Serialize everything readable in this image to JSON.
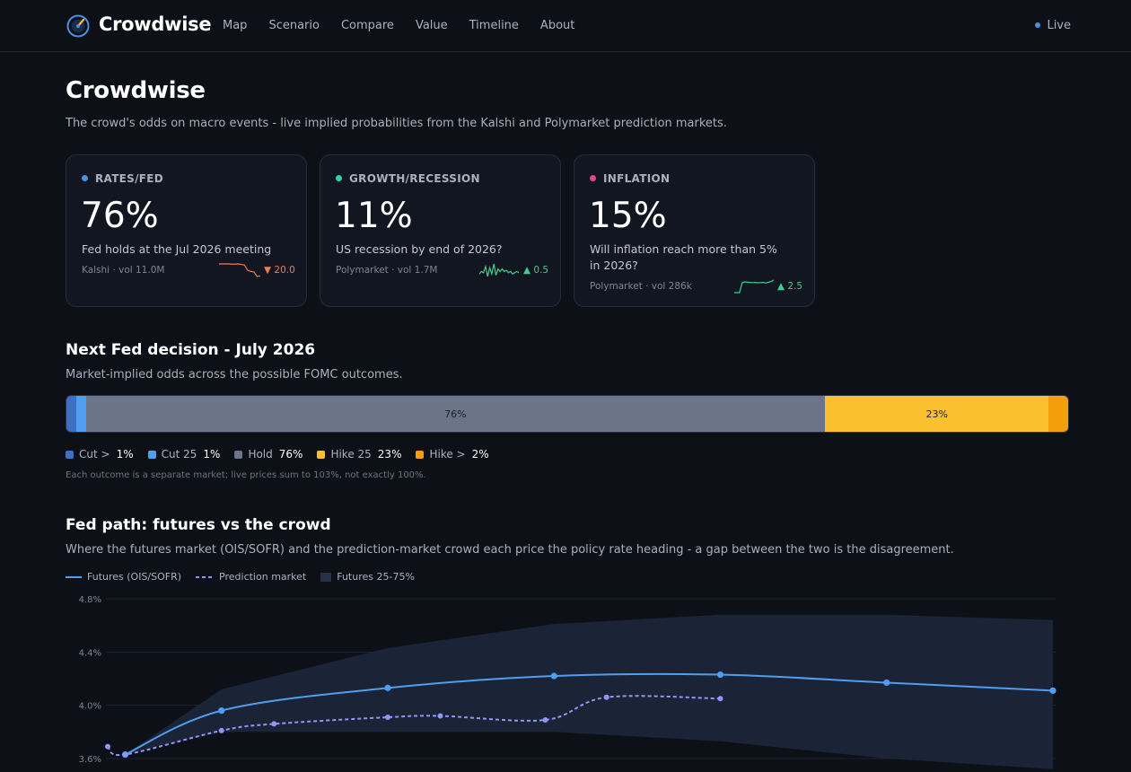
{
  "nav": {
    "brand": "Crowdwise",
    "links": [
      "Map",
      "Scenario",
      "Compare",
      "Value",
      "Timeline",
      "About"
    ],
    "status": "Live"
  },
  "header": {
    "title": "Crowdwise",
    "subtitle": "The crowd's odds on macro events - live implied probabilities from the Kalshi and Polymarket prediction markets."
  },
  "cards": [
    {
      "category": "RATES/FED",
      "dot_color": "#4a90e2",
      "value": "76%",
      "question": "Fed holds at the Jul 2026 meeting",
      "source": "Kalshi · vol 11.0M",
      "change": "▼ 20.0",
      "change_color": "#f07a5a",
      "spark_color": "#f07a5a",
      "spark": [
        8,
        8,
        8,
        8,
        7.9,
        7.9,
        8,
        7.8,
        7.6,
        5.5,
        5,
        4.8,
        3,
        3.2
      ]
    },
    {
      "category": "GROWTH/RECESSION",
      "dot_color": "#2fd1b0",
      "value": "11%",
      "question": "US recession by end of 2026?",
      "source": "Polymarket · vol 1.7M",
      "change": "▲ 0.5",
      "change_color": "#3ecf8e",
      "spark_color": "#3ecf8e",
      "spark": [
        4,
        5,
        4.5,
        7,
        3,
        6.5,
        4,
        8,
        3.5,
        6,
        5,
        6,
        5,
        5.5,
        4.5,
        5,
        4,
        4.5,
        5,
        4.5
      ]
    },
    {
      "category": "INFLATION",
      "dot_color": "#e2478f",
      "value": "15%",
      "question": "Will inflation reach more than 5% in 2026?",
      "source": "Polymarket · vol 286k",
      "change": "▲ 2.5",
      "change_color": "#3ecf8e",
      "spark_color": "#3ecf8e",
      "spark": [
        2,
        2,
        2,
        7.5,
        8,
        7.8,
        7.7,
        7.6,
        7.7,
        7.5,
        7.6,
        7.7,
        7.4,
        7.8,
        8.2,
        9
      ]
    }
  ],
  "fed_decision": {
    "title": "Next Fed decision - July 2026",
    "subtitle": "Market-implied odds across the possible FOMC outcomes.",
    "outcomes": [
      {
        "label": "Cut >",
        "value": "1%",
        "pct": 1,
        "color": "#3d6fc4",
        "show_label": false
      },
      {
        "label": "Cut 25",
        "value": "1%",
        "pct": 1,
        "color": "#4f9ef0",
        "show_label": false
      },
      {
        "label": "Hold",
        "value": "76%",
        "pct": 76,
        "color": "#6a7688",
        "show_label": true
      },
      {
        "label": "Hike 25",
        "value": "23%",
        "pct": 23,
        "color": "#fbc02d",
        "show_label": true
      },
      {
        "label": "Hike >",
        "value": "2%",
        "pct": 2,
        "color": "#f59e0b",
        "show_label": false
      }
    ],
    "footnote": "Each outcome is a separate market; live prices sum to 103%, not exactly 100%."
  },
  "fed_path": {
    "title": "Fed path: futures vs the crowd",
    "subtitle": "Where the futures market (OIS/SOFR) and the prediction-market crowd each price the policy rate heading - a gap between the two is the disagreement.",
    "legend": {
      "futures": "Futures (OIS/SOFR)",
      "prediction": "Prediction market",
      "band": "Futures 25-75%"
    },
    "colors": {
      "futures": "#4f9ef0",
      "prediction": "#8f97f5",
      "band": "#1a2436"
    }
  },
  "chart_data": {
    "type": "line",
    "y_ticks": [
      "4.8%",
      "4.4%",
      "4.0%",
      "3.6%"
    ],
    "ylim": [
      3.6,
      4.8
    ],
    "x_range": [
      0,
      1000
    ],
    "series": [
      {
        "name": "Futures (OIS/SOFR)",
        "points": [
          [
            20,
            3.63
          ],
          [
            130,
            3.96
          ],
          [
            320,
            4.13
          ],
          [
            510,
            4.22
          ],
          [
            700,
            4.23
          ],
          [
            890,
            4.17
          ],
          [
            1080,
            4.11
          ]
        ]
      },
      {
        "name": "Prediction market",
        "points": [
          [
            0,
            3.69
          ],
          [
            20,
            3.63
          ],
          [
            130,
            3.81
          ],
          [
            190,
            3.86
          ],
          [
            320,
            3.91
          ],
          [
            380,
            3.92
          ],
          [
            500,
            3.89
          ],
          [
            570,
            4.06
          ],
          [
            700,
            4.05
          ]
        ]
      }
    ],
    "band": {
      "name": "Futures 25-75%",
      "upper": [
        [
          20,
          3.63
        ],
        [
          130,
          4.12
        ],
        [
          320,
          4.43
        ],
        [
          510,
          4.61
        ],
        [
          700,
          4.68
        ],
        [
          890,
          4.68
        ],
        [
          1080,
          4.64
        ]
      ],
      "lower": [
        [
          20,
          3.63
        ],
        [
          130,
          3.8
        ],
        [
          320,
          3.8
        ],
        [
          510,
          3.8
        ],
        [
          700,
          3.73
        ],
        [
          890,
          3.6
        ],
        [
          1080,
          3.52
        ]
      ]
    }
  }
}
